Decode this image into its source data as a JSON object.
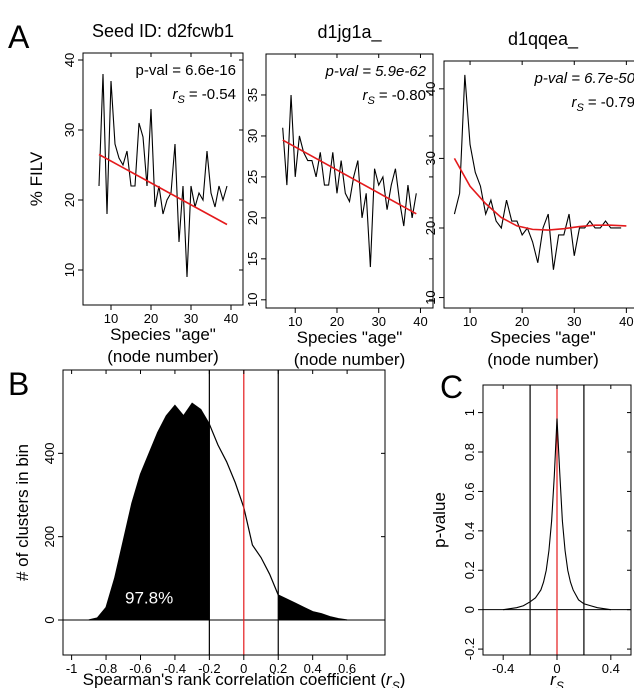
{
  "chart_data": [
    {
      "type": "line",
      "panel": "A",
      "title": "Seed ID: d2fcwb1",
      "ylabel": "% FILV",
      "xlabel_lines": [
        "Species \"age\"",
        "(node number)"
      ],
      "pval": "p-val = 6.6e-16",
      "rs_symbol": "r",
      "rs_subscript": "S",
      "rs_text": "= -0.54",
      "xlim": [
        3,
        43
      ],
      "ylim": [
        5,
        41
      ],
      "xticks": [
        10,
        20,
        30,
        40
      ],
      "yticks": [
        10,
        20,
        30,
        40
      ],
      "series": [
        {
          "color": "#000000",
          "x": [
            7,
            8,
            9,
            10,
            11,
            12,
            13,
            14,
            15,
            16,
            17,
            18,
            19,
            20,
            21,
            22,
            23,
            24,
            25,
            26,
            27,
            28,
            29,
            30,
            31,
            32,
            33,
            34,
            35,
            36,
            37,
            38,
            39
          ],
          "values": [
            22,
            38,
            18,
            37,
            28,
            26,
            25,
            27,
            22,
            22,
            31,
            29,
            22,
            33,
            19,
            22,
            18,
            20,
            21,
            28,
            14,
            22,
            9,
            22,
            19,
            21,
            20,
            27,
            21,
            19,
            22,
            20,
            22
          ]
        },
        {
          "color": "#e41a1c",
          "x": [
            7,
            39
          ],
          "values": [
            26.5,
            16.5
          ]
        }
      ]
    },
    {
      "type": "line",
      "title": "d1jg1a_",
      "xlabel_lines": [
        "Species \"age\"",
        "(node number)"
      ],
      "pval": "p-val = 5.9e-62",
      "rs_symbol": "r",
      "rs_subscript": "S",
      "rs_text": "= -0.80",
      "xlim": [
        3,
        43
      ],
      "ylim": [
        9,
        40
      ],
      "xticks": [
        10,
        20,
        30,
        40
      ],
      "yticks": [
        10,
        15,
        20,
        25,
        30,
        35
      ],
      "series": [
        {
          "color": "#000000",
          "x": [
            7,
            8,
            9,
            10,
            11,
            12,
            13,
            14,
            15,
            16,
            17,
            18,
            19,
            20,
            21,
            22,
            23,
            24,
            25,
            26,
            27,
            28,
            29,
            30,
            31,
            32,
            33,
            34,
            35,
            36,
            37,
            38,
            39
          ],
          "values": [
            31,
            24,
            35,
            25,
            30,
            28,
            27,
            27,
            25,
            28,
            24,
            24,
            28,
            23,
            27,
            23,
            22,
            25,
            27,
            20,
            23,
            14,
            26,
            24,
            25,
            21,
            24,
            26,
            22,
            19,
            24,
            20,
            23
          ]
        },
        {
          "color": "#e41a1c",
          "x": [
            7,
            39
          ],
          "values": [
            29.5,
            20.5
          ]
        }
      ]
    },
    {
      "type": "line",
      "title": "d1qqea_",
      "xlabel_lines": [
        "Species \"age\"",
        "(node number)"
      ],
      "pval": "p-val = 6.7e-50",
      "rs_symbol": "r",
      "rs_subscript": "S",
      "rs_text": "= -0.79",
      "xlim": [
        5,
        43
      ],
      "ylim": [
        8.5,
        44
      ],
      "xticks": [
        10,
        20,
        30,
        40
      ],
      "yticks": [
        10,
        20,
        30,
        40
      ],
      "series": [
        {
          "color": "#000000",
          "x": [
            7,
            8,
            9,
            10,
            11,
            12,
            13,
            14,
            15,
            16,
            17,
            18,
            19,
            20,
            21,
            22,
            23,
            24,
            25,
            26,
            27,
            28,
            29,
            30,
            31,
            32,
            33,
            34,
            35,
            36,
            37,
            38,
            39
          ],
          "values": [
            22,
            25,
            42,
            32,
            28,
            26,
            22,
            24,
            21,
            20,
            24,
            21,
            21,
            19,
            20,
            18,
            15,
            20,
            22,
            14,
            19,
            19,
            22,
            16,
            20,
            20,
            21,
            20,
            20,
            21,
            20,
            20,
            20
          ]
        },
        {
          "color": "#e41a1c",
          "x": [
            7,
            10,
            13,
            16,
            19,
            22,
            25,
            28,
            31,
            34,
            37,
            40
          ],
          "values": [
            30,
            26,
            23.5,
            21.5,
            20.3,
            19.8,
            19.7,
            19.9,
            20.2,
            20.4,
            20.4,
            20.3
          ]
        }
      ]
    },
    {
      "type": "area",
      "panel": "B",
      "ylabel": "# of clusters in bin",
      "xlabel": "Spearman's rank correlation coefficient (",
      "xlabel_symbol": "r",
      "xlabel_subscript": "S",
      "xlabel_end": ")",
      "label": "97.8%",
      "color": "#000000",
      "xlim": [
        -1.05,
        0.82
      ],
      "ylim": [
        -84,
        600
      ],
      "xticks": [
        -1,
        -0.8,
        -0.6,
        -0.4,
        -0.2,
        0,
        0.2,
        0.4,
        0.6
      ],
      "yticks": [
        0,
        200,
        400
      ],
      "thresholds": [
        -0.2,
        0,
        0.2
      ],
      "threshold_colors": [
        "#000000",
        "#e41a1c",
        "#000000"
      ],
      "zero_line": true,
      "x": [
        -0.9,
        -0.85,
        -0.8,
        -0.75,
        -0.7,
        -0.65,
        -0.6,
        -0.55,
        -0.5,
        -0.45,
        -0.4,
        -0.35,
        -0.3,
        -0.25,
        -0.2,
        -0.15,
        -0.1,
        -0.05,
        0,
        0.05,
        0.1,
        0.15,
        0.2,
        0.25,
        0.3,
        0.35,
        0.4,
        0.45,
        0.5,
        0.55,
        0.6
      ],
      "values": [
        0,
        5,
        30,
        100,
        190,
        280,
        350,
        400,
        450,
        490,
        515,
        490,
        520,
        505,
        470,
        420,
        380,
        330,
        270,
        180,
        150,
        110,
        60,
        50,
        40,
        30,
        20,
        15,
        8,
        3,
        0
      ]
    },
    {
      "type": "line",
      "panel": "C",
      "ylabel": "p-value",
      "xlabel_symbol": "r",
      "xlabel_subscript": "S",
      "xlim": [
        -0.55,
        0.55
      ],
      "ylim": [
        -0.23,
        1.14
      ],
      "xticks": [
        -0.4,
        0,
        0.4
      ],
      "yticks": [
        -0.2,
        0,
        0.2,
        0.4,
        0.6,
        0.8,
        1
      ],
      "thresholds": [
        -0.2,
        0,
        0.2
      ],
      "threshold_colors": [
        "#000000",
        "#e41a1c",
        "#000000"
      ],
      "zero_line": true,
      "series": [
        {
          "color": "#000000",
          "x": [
            -0.4,
            -0.3,
            -0.25,
            -0.2,
            -0.16,
            -0.12,
            -0.1,
            -0.08,
            -0.06,
            -0.04,
            -0.02,
            0,
            0.02,
            0.04,
            0.06,
            0.08,
            0.1,
            0.12,
            0.16,
            0.2,
            0.25,
            0.3,
            0.4
          ],
          "values": [
            0,
            0.01,
            0.02,
            0.04,
            0.06,
            0.1,
            0.14,
            0.2,
            0.3,
            0.45,
            0.68,
            0.97,
            0.7,
            0.45,
            0.3,
            0.2,
            0.14,
            0.1,
            0.05,
            0.03,
            0.02,
            0.01,
            0
          ]
        }
      ]
    }
  ]
}
